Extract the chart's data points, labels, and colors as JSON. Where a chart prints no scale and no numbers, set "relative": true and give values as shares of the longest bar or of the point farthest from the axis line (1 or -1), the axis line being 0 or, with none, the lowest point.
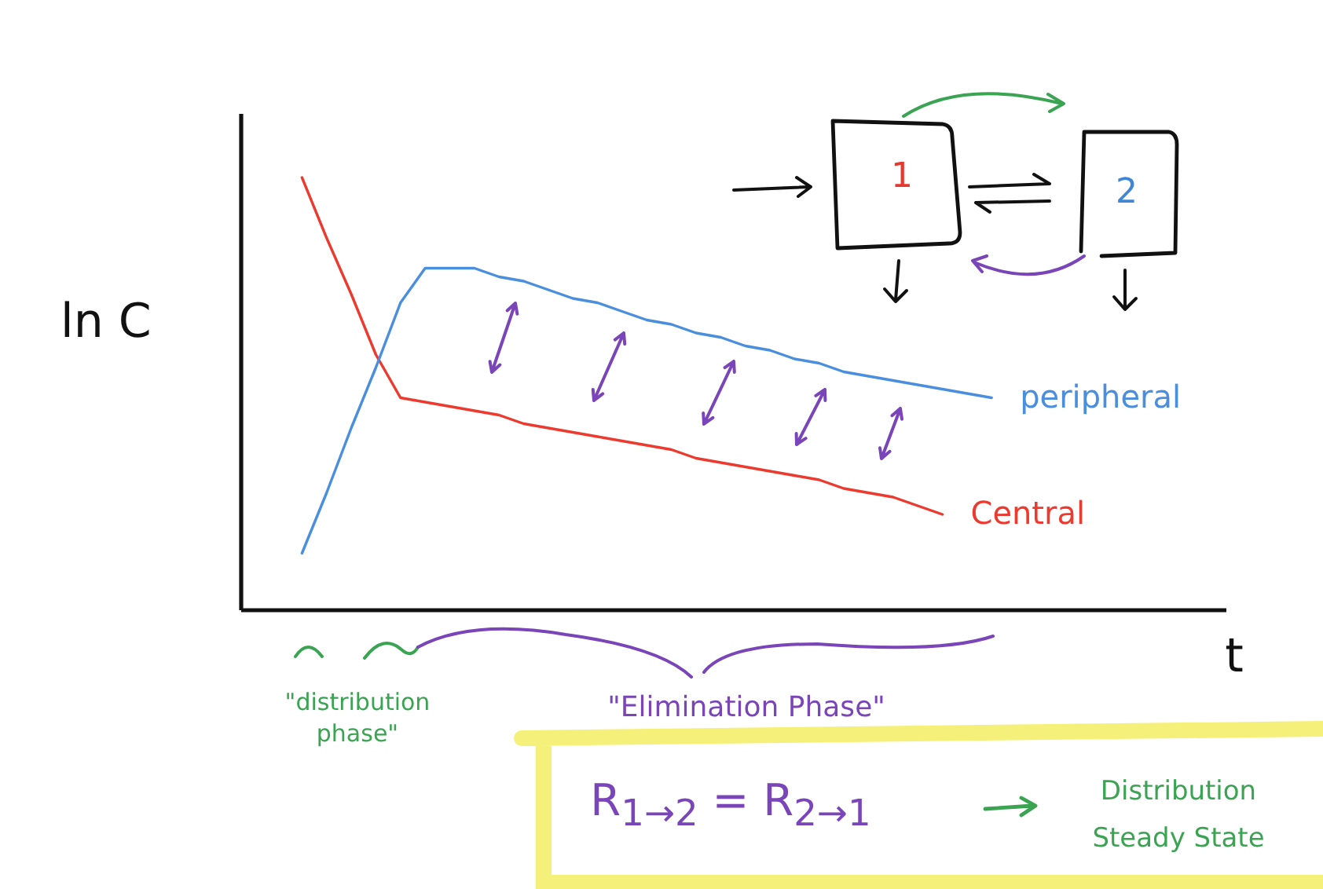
{
  "chart_data": {
    "type": "line",
    "relative": true,
    "xlabel": "t",
    "ylabel": "ln C",
    "categories": [
      null,
      null,
      null,
      null,
      null,
      null,
      null,
      null,
      null,
      null,
      null,
      null,
      null,
      null,
      null,
      null,
      null,
      null,
      null,
      null,
      null,
      null,
      null,
      null,
      null,
      null,
      null,
      null,
      null,
      null,
      null,
      null,
      null,
      null,
      null,
      null,
      null,
      null,
      null,
      null
    ],
    "series": [
      {
        "name": "Central",
        "color": "#ec3a2e",
        "values": [
          null,
          null,
          1,
          0.86,
          0.73,
          0.59,
          0.49,
          0.48,
          0.47,
          0.46,
          0.45,
          0.43,
          0.42,
          0.41,
          0.4,
          0.39,
          0.38,
          0.37,
          0.35,
          0.34,
          0.33,
          0.32,
          0.31,
          0.3,
          0.28,
          0.27,
          0.26,
          0.24,
          0.22,
          null,
          null,
          null,
          null,
          null,
          null,
          null,
          null,
          null,
          null,
          null
        ]
      },
      {
        "name": "peripheral",
        "color": "#4a8ede",
        "values": [
          null,
          null,
          0.13,
          0.27,
          0.42,
          0.56,
          0.71,
          0.79,
          0.79,
          0.79,
          0.77,
          0.76,
          0.74,
          0.72,
          0.71,
          0.69,
          0.67,
          0.66,
          0.64,
          0.63,
          0.61,
          0.6,
          0.58,
          0.57,
          0.55,
          0.54,
          0.53,
          0.52,
          0.51,
          0.5,
          0.49,
          null,
          null,
          null,
          null,
          null,
          null,
          null,
          null,
          null
        ]
      }
    ],
    "annotations": [
      "1",
      "2",
      "\"distribution phase\"",
      "\"Elimination Phase\"",
      "R$_{1→2}$ = R$_{2→1}$",
      "Distribution Steady State"
    ]
  }
}
